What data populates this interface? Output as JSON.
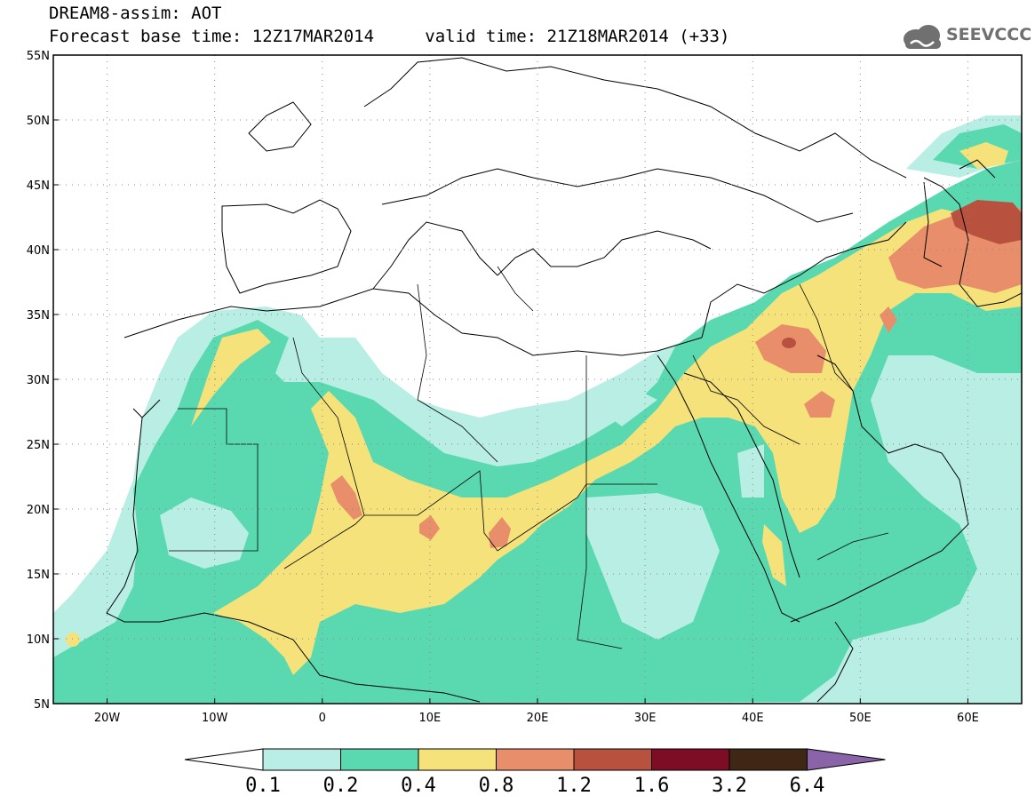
{
  "header": {
    "title": "DREAM8-assim: AOT",
    "base_label": "Forecast base time: 12Z17MAR2014",
    "valid_label": "valid time: 21Z18MAR2014 (+33)",
    "logo_text": "SEEVCCC"
  },
  "map": {
    "lon_range": [
      -25,
      65
    ],
    "lat_range": [
      5,
      55
    ],
    "lon_ticks": [
      {
        "value": -20,
        "label": "20W"
      },
      {
        "value": -10,
        "label": "10W"
      },
      {
        "value": 0,
        "label": "0"
      },
      {
        "value": 10,
        "label": "10E"
      },
      {
        "value": 20,
        "label": "20E"
      },
      {
        "value": 30,
        "label": "30E"
      },
      {
        "value": 40,
        "label": "40E"
      },
      {
        "value": 50,
        "label": "50E"
      },
      {
        "value": 60,
        "label": "60E"
      }
    ],
    "lat_ticks": [
      {
        "value": 55,
        "label": "55N"
      },
      {
        "value": 50,
        "label": "50N"
      },
      {
        "value": 45,
        "label": "45N"
      },
      {
        "value": 40,
        "label": "40N"
      },
      {
        "value": 35,
        "label": "35N"
      },
      {
        "value": 30,
        "label": "30N"
      },
      {
        "value": 25,
        "label": "25N"
      },
      {
        "value": 20,
        "label": "20N"
      },
      {
        "value": 15,
        "label": "15N"
      },
      {
        "value": 10,
        "label": "10N"
      },
      {
        "value": 5,
        "label": "5N"
      }
    ],
    "grid": "dotted"
  },
  "legend": {
    "levels": [
      "0.1",
      "0.2",
      "0.4",
      "0.8",
      "1.2",
      "1.6",
      "3.2",
      "6.4"
    ],
    "colors": [
      "#b8eee4",
      "#5ad9b0",
      "#f5e27a",
      "#e88e6a",
      "#b9513f",
      "#7c0d25",
      "#3f2716"
    ],
    "below_color": "#ffffff",
    "above_color": "#8b63a8"
  }
}
